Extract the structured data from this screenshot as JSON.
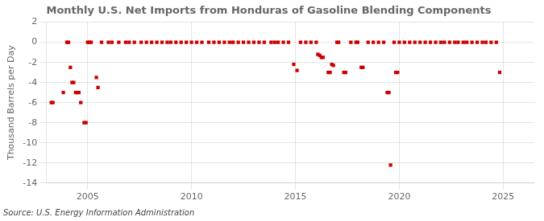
{
  "chart_data": {
    "type": "scatter",
    "title": "Monthly U.S. Net Imports from Honduras of Gasoline Blending Components",
    "y_label": "Thousand Barrels per Day",
    "annotations": [
      "Source: U.S. Energy Information Administration"
    ],
    "color": "#cc0000",
    "marker": "square",
    "grid": true,
    "xlim": [
      2003.0,
      2026.5
    ],
    "ylim": [
      -14,
      2
    ],
    "xticks": [
      2005,
      2010,
      2015,
      2020,
      2025
    ],
    "yticks": [
      2,
      0,
      -2,
      -4,
      -6,
      -8,
      -10,
      -12,
      -14
    ],
    "x": [
      2003.25,
      2003.33,
      2003.83,
      2004.0,
      2004.08,
      2004.17,
      2004.25,
      2004.33,
      2004.42,
      2004.5,
      2004.58,
      2004.67,
      2004.83,
      2004.92,
      2005.0,
      2005.08,
      2005.17,
      2005.42,
      2005.5,
      2005.67,
      2006.0,
      2006.17,
      2006.5,
      2006.83,
      2007.0,
      2007.25,
      2007.58,
      2007.83,
      2008.08,
      2008.33,
      2008.58,
      2008.83,
      2009.0,
      2009.25,
      2009.5,
      2009.75,
      2010.0,
      2010.25,
      2010.5,
      2010.83,
      2011.08,
      2011.33,
      2011.58,
      2011.83,
      2012.0,
      2012.25,
      2012.5,
      2012.75,
      2013.0,
      2013.25,
      2013.5,
      2013.83,
      2014.0,
      2014.17,
      2014.42,
      2014.67,
      2014.92,
      2015.08,
      2015.25,
      2015.5,
      2015.75,
      2016.0,
      2016.08,
      2016.17,
      2016.25,
      2016.33,
      2016.58,
      2016.67,
      2016.75,
      2016.83,
      2017.0,
      2017.08,
      2017.33,
      2017.42,
      2017.67,
      2017.92,
      2018.0,
      2018.17,
      2018.25,
      2018.5,
      2018.75,
      2019.0,
      2019.25,
      2019.42,
      2019.5,
      2019.58,
      2019.75,
      2019.83,
      2019.92,
      2020.0,
      2020.25,
      2020.5,
      2020.75,
      2021.0,
      2021.25,
      2021.5,
      2021.75,
      2022.0,
      2022.17,
      2022.42,
      2022.67,
      2022.83,
      2023.08,
      2023.25,
      2023.5,
      2023.75,
      2024.0,
      2024.17,
      2024.42,
      2024.67,
      2024.83
    ],
    "values": [
      -6.0,
      -6.0,
      -5.0,
      0.0,
      0.0,
      -2.5,
      -4.0,
      -4.0,
      -5.0,
      -5.0,
      -5.0,
      -6.0,
      -8.0,
      -8.0,
      0.0,
      0.0,
      0.0,
      -3.5,
      -4.5,
      0.0,
      0.0,
      0.0,
      0.0,
      0.0,
      0.0,
      0.0,
      0.0,
      0.0,
      0.0,
      0.0,
      0.0,
      0.0,
      0.0,
      0.0,
      0.0,
      0.0,
      0.0,
      0.0,
      0.0,
      0.0,
      0.0,
      0.0,
      0.0,
      0.0,
      0.0,
      0.0,
      0.0,
      0.0,
      0.0,
      0.0,
      0.0,
      0.0,
      0.0,
      0.0,
      0.0,
      0.0,
      -2.2,
      -2.8,
      0.0,
      0.0,
      0.0,
      0.0,
      -1.2,
      -1.3,
      -1.5,
      -1.5,
      -3.0,
      -3.0,
      -2.2,
      -2.3,
      0.0,
      0.0,
      -3.0,
      -3.0,
      0.0,
      0.0,
      0.0,
      -2.5,
      -2.5,
      0.0,
      0.0,
      0.0,
      0.0,
      -5.0,
      -5.0,
      -12.2,
      0.0,
      -3.0,
      -3.0,
      0.0,
      0.0,
      0.0,
      0.0,
      0.0,
      0.0,
      0.0,
      0.0,
      0.0,
      0.0,
      0.0,
      0.0,
      0.0,
      0.0,
      0.0,
      0.0,
      0.0,
      0.0,
      0.0,
      0.0,
      0.0,
      -3.0
    ]
  }
}
